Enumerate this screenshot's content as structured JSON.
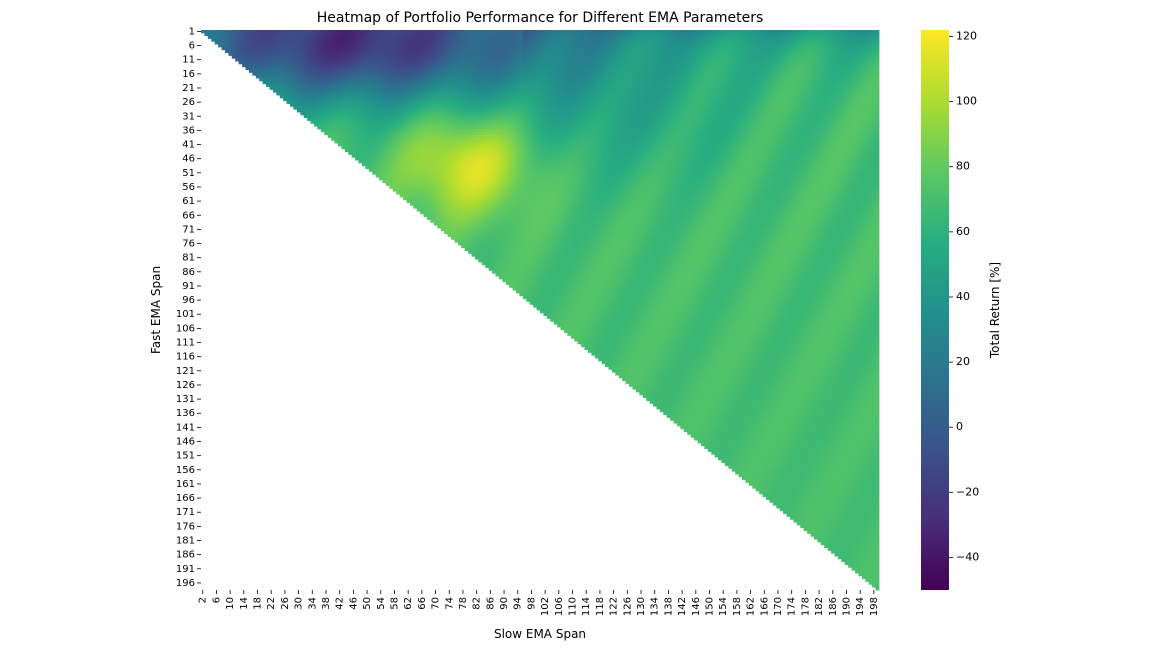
{
  "chart_data": {
    "type": "heatmap",
    "title": "Heatmap of Portfolio Performance for Different EMA Parameters",
    "xlabel": "Slow EMA Span",
    "ylabel": "Fast EMA Span",
    "x_range": [
      2,
      199
    ],
    "y_range": [
      1,
      198
    ],
    "x_ticks": [
      2,
      6,
      10,
      14,
      18,
      22,
      26,
      30,
      34,
      38,
      42,
      46,
      50,
      54,
      58,
      62,
      66,
      70,
      74,
      78,
      82,
      86,
      90,
      94,
      98,
      102,
      106,
      110,
      114,
      118,
      122,
      126,
      130,
      134,
      138,
      142,
      146,
      150,
      154,
      158,
      162,
      166,
      170,
      174,
      178,
      182,
      186,
      190,
      194,
      198
    ],
    "y_ticks": [
      1,
      6,
      11,
      16,
      21,
      26,
      31,
      36,
      41,
      46,
      51,
      56,
      61,
      66,
      71,
      76,
      81,
      86,
      91,
      96,
      101,
      106,
      111,
      116,
      121,
      126,
      131,
      136,
      141,
      146,
      151,
      156,
      161,
      166,
      171,
      176,
      181,
      186,
      191,
      196
    ],
    "colorbar": {
      "label": "Total Return [%]",
      "vmin": -50,
      "vmax": 122,
      "ticks": [
        120,
        100,
        80,
        60,
        40,
        20,
        0,
        -20,
        -40
      ],
      "colormap": "viridis"
    },
    "mask": "cells where slow span <= fast span are empty (lower-left triangle)",
    "approx_regions": [
      {
        "area": "fast 1-25, slow 10-100",
        "value_range": [
          -45,
          -10
        ]
      },
      {
        "area": "ridge fast 35-65, slow 62-95",
        "value_range": [
          100,
          120
        ]
      },
      {
        "area": "fast 1-15, slow 100-198",
        "value_range": [
          0,
          45
        ]
      },
      {
        "area": "remaining upper triangle",
        "value_range": [
          60,
          85
        ]
      }
    ]
  }
}
